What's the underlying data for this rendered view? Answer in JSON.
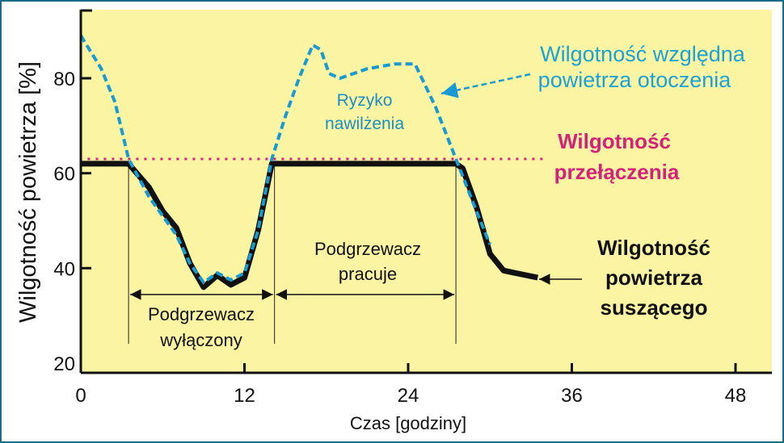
{
  "chart_data": {
    "type": "line",
    "xlabel": "Czas [godziny]",
    "ylabel": "Wilgotność powietrza [%]",
    "xlim": [
      0,
      48
    ],
    "ylim": [
      20,
      95
    ],
    "x_ticks": [
      0,
      12,
      24,
      36,
      48
    ],
    "y_ticks": [
      20,
      40,
      60,
      80
    ],
    "grid": false,
    "colors": {
      "plot_background": "#fbf4a2",
      "ambient": "#1a9ad2",
      "switch": "#d4217a",
      "drying": "#111111"
    },
    "series": [
      {
        "key": "drying",
        "name": [
          "Wilgotność",
          "powietrza",
          "suszącego"
        ],
        "style": "solid-thick",
        "x": [
          0,
          3.5,
          5,
          6,
          7,
          8,
          9,
          10,
          11,
          12,
          13,
          14,
          14.2,
          15,
          27.5,
          28,
          29,
          30,
          31,
          33.5
        ],
        "y": [
          62,
          62,
          57,
          52,
          48.5,
          41,
          36,
          38.5,
          36.5,
          38,
          48,
          62,
          62,
          62,
          62,
          61,
          53,
          43,
          39.5,
          38
        ]
      },
      {
        "key": "ambient",
        "name": [
          "Wilgotność względna",
          "powietrza otoczenia"
        ],
        "style": "dashed",
        "x": [
          0,
          1.5,
          2.5,
          3.5,
          5,
          6,
          7,
          8,
          9,
          10,
          11,
          12,
          13,
          14,
          15,
          16,
          17,
          17.6,
          18.2,
          19,
          21,
          23,
          24.5,
          26,
          27.5,
          29,
          30
        ],
        "y": [
          89,
          82,
          75,
          63,
          55,
          51,
          47,
          41,
          37,
          39,
          37.5,
          39,
          48,
          63,
          72,
          80,
          87,
          86,
          81,
          80,
          82,
          83,
          83,
          74,
          63,
          52,
          45
        ]
      },
      {
        "key": "switch",
        "name": [
          "Wilgotność",
          "przełączenia"
        ],
        "style": "dotted",
        "x": [
          0.5,
          34
        ],
        "y": [
          63,
          63
        ]
      }
    ],
    "annotations": [
      {
        "key": "heater_off",
        "lines": [
          "Podgrzewacz",
          "wyłączony"
        ],
        "x_range": [
          3.5,
          14.2
        ]
      },
      {
        "key": "heater_on",
        "lines": [
          "Podgrzewacz",
          "pracuje"
        ],
        "x_range": [
          14.2,
          27.5
        ]
      },
      {
        "key": "risk",
        "lines": [
          "Ryzyko",
          "nawilżenia"
        ]
      }
    ]
  }
}
